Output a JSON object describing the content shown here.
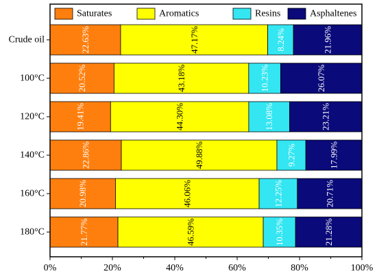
{
  "chart_data": {
    "type": "bar",
    "orientation": "horizontal",
    "stacked": true,
    "title": "",
    "xlabel": "",
    "ylabel": "",
    "xlim": [
      0,
      100
    ],
    "x_ticks": [
      "0%",
      "20%",
      "40%",
      "60%",
      "80%",
      "100%"
    ],
    "categories": [
      "Crude oil",
      "100°C",
      "120°C",
      "140°C",
      "160°C",
      "180°C"
    ],
    "series": [
      {
        "name": "Saturates",
        "color": "#FF7F0E",
        "values": [
          22.63,
          20.52,
          19.41,
          22.86,
          20.98,
          21.77
        ],
        "labels": [
          "22.63%",
          "20.52%",
          "19.41%",
          "22.86%",
          "20.98%",
          "21.77%"
        ],
        "label_color": "#ffffff"
      },
      {
        "name": "Aromatics",
        "color": "#FFFF00",
        "values": [
          47.17,
          43.18,
          44.3,
          49.88,
          46.06,
          46.59
        ],
        "labels": [
          "47.17%",
          "43.18%",
          "44.30%",
          "49.88%",
          "46.06%",
          "46.59%"
        ],
        "label_color": "#000000"
      },
      {
        "name": "Resins",
        "color": "#33E6F2",
        "values": [
          8.24,
          10.23,
          13.08,
          9.27,
          12.25,
          10.35
        ],
        "labels": [
          "8.24%",
          "10.23%",
          "13.08%",
          "9.27%",
          "12.25%",
          "10.35%"
        ],
        "label_color": "#ffffff"
      },
      {
        "name": "Asphaltenes",
        "color": "#0A0A7A",
        "values": [
          21.96,
          26.07,
          23.21,
          17.99,
          20.71,
          21.28
        ],
        "labels": [
          "21.96%",
          "26.07%",
          "23.21%",
          "17.99%",
          "20.71%",
          "21.28%"
        ],
        "label_color": "#ffffff"
      }
    ],
    "legend_position": "top",
    "grid": false
  }
}
